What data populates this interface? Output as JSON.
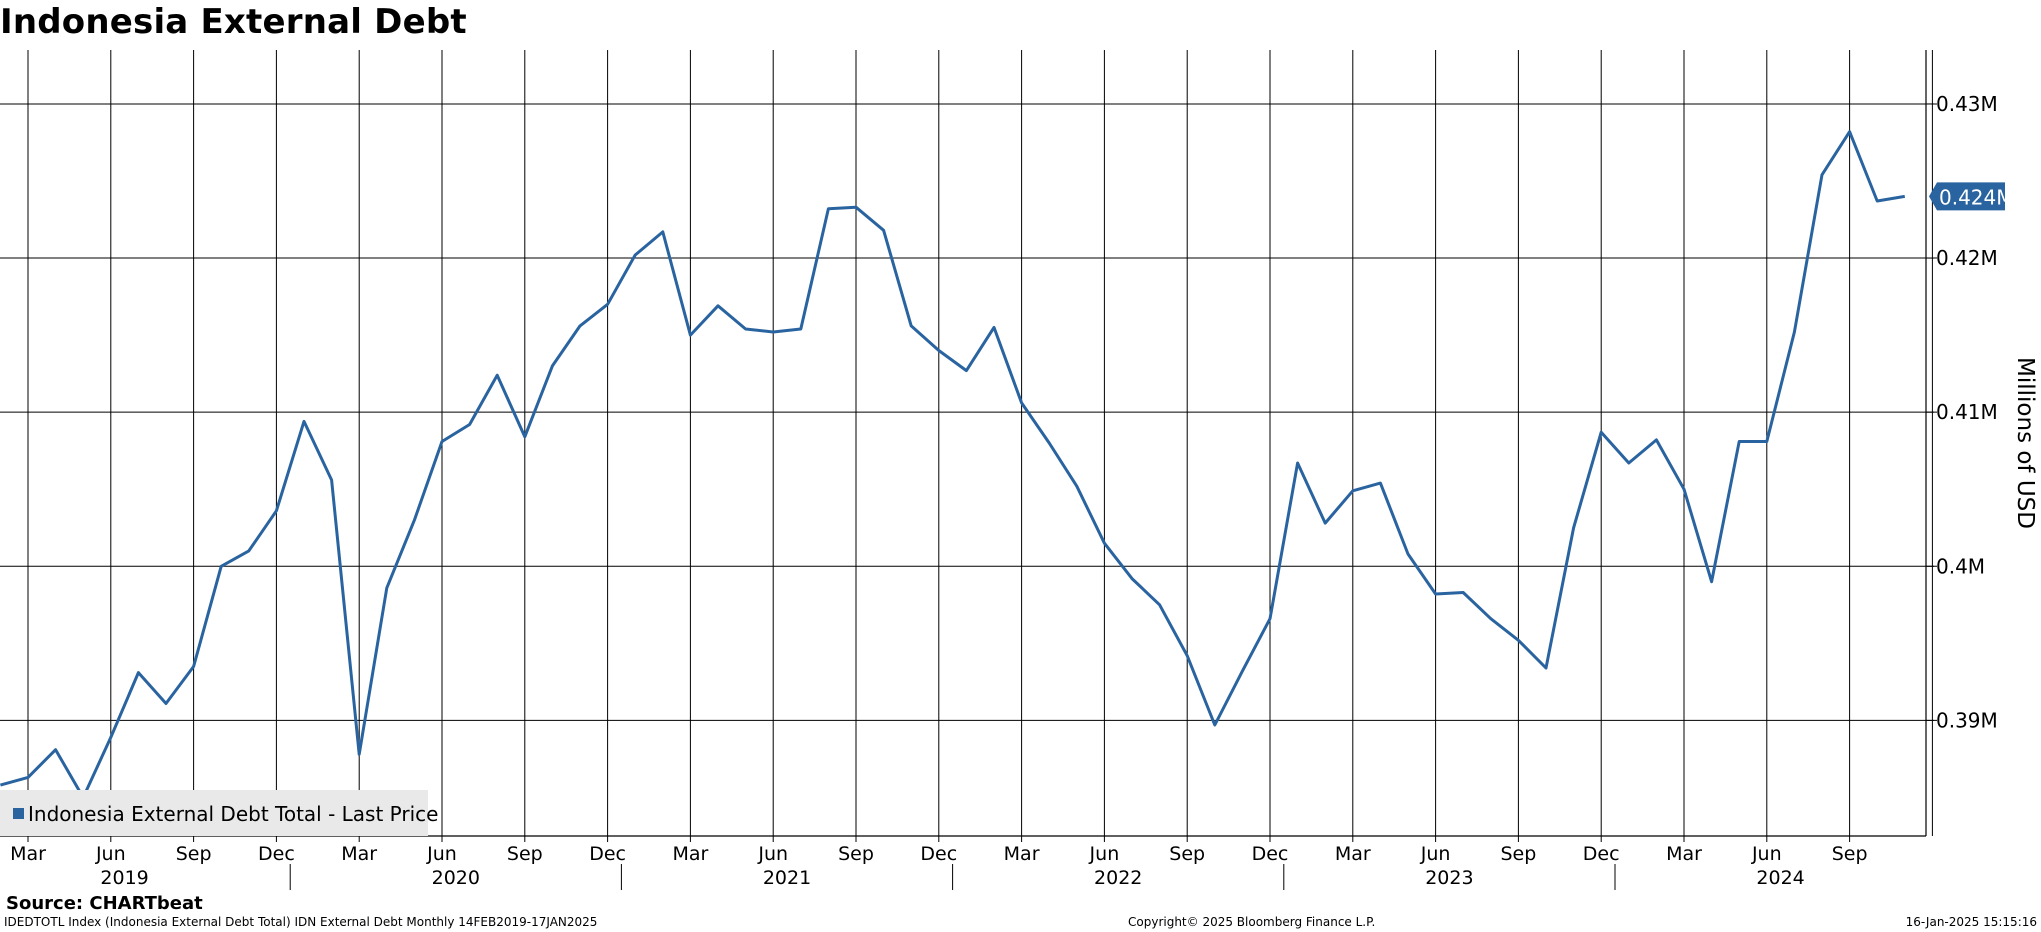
{
  "chart_data": {
    "type": "line",
    "title": "Indonesia External Debt",
    "ylabel": "Millions of USD",
    "legend": {
      "label": "Indonesia External Debt Total - Last Price",
      "placement": "bottom-left"
    },
    "ylim": [
      0.3825,
      0.4335
    ],
    "y_ticks": [
      0.39,
      0.4,
      0.41,
      0.42,
      0.43
    ],
    "y_tick_labels": [
      "0.39M",
      "0.4M",
      "0.41M",
      "0.42M",
      "0.43M"
    ],
    "last_value_label": "0.424M",
    "grid": true,
    "y_axis_side": "right",
    "x_month_labels": [
      "Mar",
      "Jun",
      "Sep",
      "Dec",
      "Mar",
      "Jun",
      "Sep",
      "Dec",
      "Mar",
      "Jun",
      "Sep",
      "Dec",
      "Mar",
      "Jun",
      "Sep",
      "Dec",
      "Mar",
      "Jun",
      "Sep",
      "Dec",
      "Mar",
      "Jun",
      "Sep"
    ],
    "x_year_labels": [
      "2019",
      "2020",
      "2021",
      "2022",
      "2023",
      "2024"
    ],
    "series": [
      {
        "name": "Indonesia External Debt Total - Last Price",
        "color": "#2a64a0",
        "x": [
          "2019-02",
          "2019-03",
          "2019-04",
          "2019-05",
          "2019-06",
          "2019-07",
          "2019-08",
          "2019-09",
          "2019-10",
          "2019-11",
          "2019-12",
          "2020-01",
          "2020-02",
          "2020-03",
          "2020-04",
          "2020-05",
          "2020-06",
          "2020-07",
          "2020-08",
          "2020-09",
          "2020-10",
          "2020-11",
          "2020-12",
          "2021-01",
          "2021-02",
          "2021-03",
          "2021-04",
          "2021-05",
          "2021-06",
          "2021-07",
          "2021-08",
          "2021-09",
          "2021-10",
          "2021-11",
          "2021-12",
          "2022-01",
          "2022-02",
          "2022-03",
          "2022-04",
          "2022-05",
          "2022-06",
          "2022-07",
          "2022-08",
          "2022-09",
          "2022-10",
          "2022-11",
          "2022-12",
          "2023-01",
          "2023-02",
          "2023-03",
          "2023-04",
          "2023-05",
          "2023-06",
          "2023-07",
          "2023-08",
          "2023-09",
          "2023-10",
          "2023-11",
          "2023-12",
          "2024-01",
          "2024-02",
          "2024-03",
          "2024-04",
          "2024-05",
          "2024-06",
          "2024-07",
          "2024-08",
          "2024-09",
          "2024-10",
          "2024-11"
        ],
        "values": [
          0.3858,
          0.3863,
          0.3881,
          0.385,
          0.3889,
          0.3931,
          0.3911,
          0.3935,
          0.4,
          0.401,
          0.4036,
          0.4094,
          0.4056,
          0.3878,
          0.3986,
          0.403,
          0.4081,
          0.4092,
          0.4124,
          0.4084,
          0.413,
          0.4156,
          0.417,
          0.4202,
          0.4217,
          0.415,
          0.4169,
          0.4154,
          0.4152,
          0.4154,
          0.4232,
          0.4233,
          0.4218,
          0.4156,
          0.414,
          0.4127,
          0.4155,
          0.4106,
          0.408,
          0.4052,
          0.4015,
          0.3992,
          0.3975,
          0.3942,
          0.3897,
          0.3932,
          0.3966,
          0.4067,
          0.4028,
          0.4049,
          0.4054,
          0.4008,
          0.3982,
          0.3983,
          0.3966,
          0.3952,
          0.3934,
          0.4025,
          0.4087,
          0.4067,
          0.4082,
          0.405,
          0.399,
          0.4081,
          0.4081,
          0.4152,
          0.4254,
          0.4282,
          0.4237,
          0.424
        ]
      }
    ]
  },
  "source": "Source: CHARTbeat",
  "footer": {
    "left": "IDEDTOTL Index (Indonesia External Debt Total) IDN External Debt  Monthly 14FEB2019-17JAN2025",
    "center": "Copyright© 2025 Bloomberg Finance L.P.",
    "right": "16-Jan-2025 15:15:16"
  }
}
